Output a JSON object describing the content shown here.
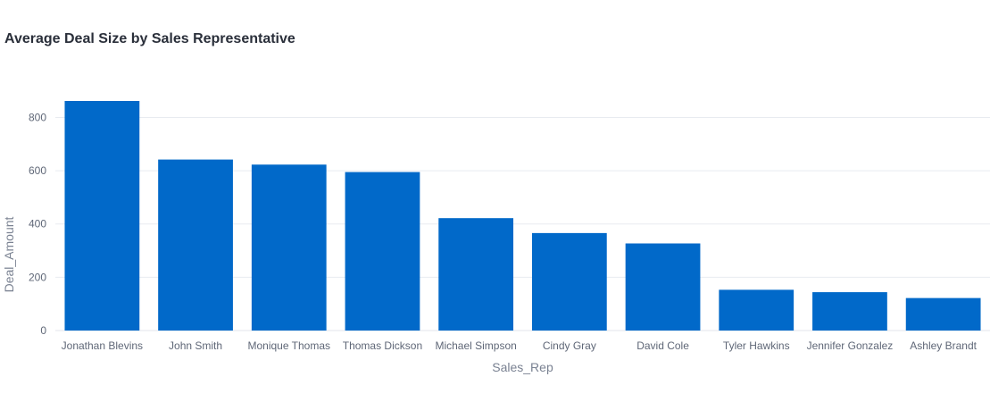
{
  "chart_data": {
    "type": "bar",
    "title": "Average Deal Size by Sales Representative",
    "xlabel": "Sales_Rep",
    "ylabel": "Deal_Amount",
    "categories": [
      "Jonathan Blevins",
      "John Smith",
      "Monique Thomas",
      "Thomas Dickson",
      "Michael Simpson",
      "Cindy Gray",
      "David Cole",
      "Tyler Hawkins",
      "Jennifer Gonzalez",
      "Ashley Brandt"
    ],
    "values": [
      862,
      642,
      623,
      595,
      422,
      366,
      327,
      153,
      144,
      122
    ],
    "ylim": [
      0,
      860
    ],
    "yticks": [
      0,
      200,
      400,
      600,
      800
    ],
    "grid": true,
    "legend": "none",
    "colors": {
      "bar": "#0169c9",
      "grid": "#e8ebf0",
      "axis": "#e3e6eb"
    }
  }
}
